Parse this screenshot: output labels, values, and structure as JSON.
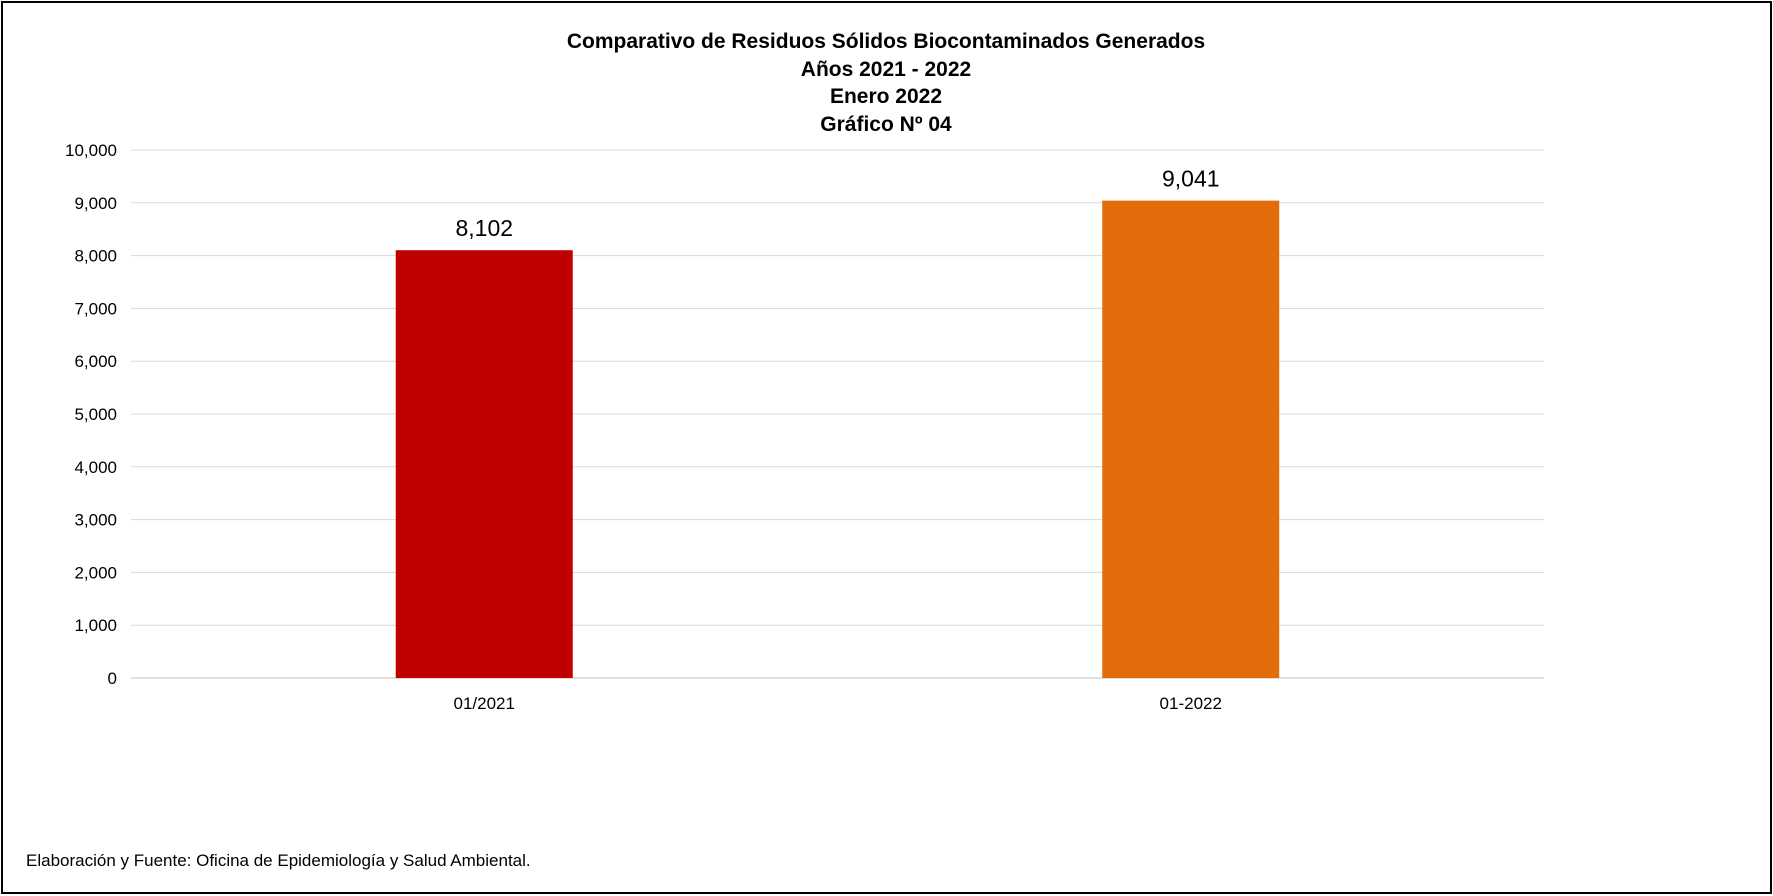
{
  "chart_data": {
    "type": "bar",
    "title_lines": [
      "Comparativo de Residuos Sólidos Biocontaminados Generados",
      "Años 2021 - 2022",
      "Enero 2022",
      "Gráfico Nº 04"
    ],
    "categories": [
      "01/2021",
      "01-2022"
    ],
    "values": [
      8102,
      9041
    ],
    "value_labels": [
      "8,102",
      "9,041"
    ],
    "bar_colors": [
      "#C00000",
      "#E36C0A"
    ],
    "xlabel": "",
    "ylabel": "",
    "ylim": [
      0,
      10000
    ],
    "y_ticks": [
      0,
      1000,
      2000,
      3000,
      4000,
      5000,
      6000,
      7000,
      8000,
      9000,
      10000
    ],
    "y_tick_labels": [
      "0",
      "1,000",
      "2,000",
      "3,000",
      "4,000",
      "5,000",
      "6,000",
      "7,000",
      "8,000",
      "9,000",
      "10,000"
    ],
    "grid": true,
    "legend": "none"
  },
  "footer": {
    "source": "Elaboración y Fuente: Oficina de Epidemiología y Salud Ambiental."
  },
  "colors": {
    "gridline": "#D9D9D9",
    "axis": "#BFBFBF",
    "border": "#000000"
  }
}
